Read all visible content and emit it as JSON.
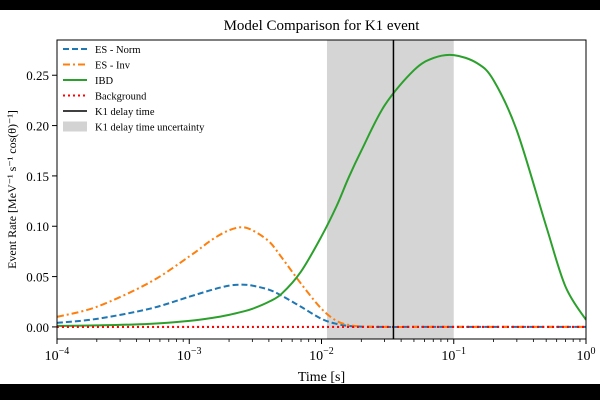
{
  "chart_data": {
    "type": "line",
    "title": "Model Comparison for K1 event",
    "xlabel": "Time [s]",
    "ylabel": "Event Rate [MeV⁻¹ s⁻¹ cos(θ)⁻¹]",
    "xscale": "log",
    "xlim": [
      0.0001,
      1
    ],
    "ylim": [
      -0.012,
      0.285
    ],
    "x_ticks": [
      {
        "value": 0.0001,
        "base": "10",
        "exp": "−4"
      },
      {
        "value": 0.001,
        "base": "10",
        "exp": "−3"
      },
      {
        "value": 0.01,
        "base": "10",
        "exp": "−2"
      },
      {
        "value": 0.1,
        "base": "10",
        "exp": "−1"
      },
      {
        "value": 1,
        "base": "10",
        "exp": "0"
      }
    ],
    "y_ticks": [
      {
        "value": 0.0,
        "label": "0.00"
      },
      {
        "value": 0.05,
        "label": "0.05"
      },
      {
        "value": 0.1,
        "label": "0.10"
      },
      {
        "value": 0.15,
        "label": "0.15"
      },
      {
        "value": 0.2,
        "label": "0.20"
      },
      {
        "value": 0.25,
        "label": "0.25"
      }
    ],
    "grid": false,
    "legend_position": "top-left",
    "x": [
      0.0001,
      0.0002,
      0.0005,
      0.001,
      0.0015,
      0.002,
      0.0025,
      0.003,
      0.004,
      0.005,
      0.007,
      0.01,
      0.013,
      0.016,
      0.02,
      0.03,
      0.05,
      0.07,
      0.1,
      0.15,
      0.2,
      0.3,
      0.5,
      0.7,
      1.0
    ],
    "series": [
      {
        "name": "ES - Norm",
        "color": "#1f77b4",
        "dash": "dashed",
        "values": [
          0.004,
          0.008,
          0.018,
          0.03,
          0.037,
          0.041,
          0.042,
          0.041,
          0.037,
          0.031,
          0.02,
          0.008,
          0.003,
          0.001,
          0.0003,
          0,
          0,
          0,
          0,
          0,
          0,
          0,
          0,
          0,
          0
        ]
      },
      {
        "name": "ES - Inv",
        "color": "#ff7f0e",
        "dash": "dashdot",
        "values": [
          0.01,
          0.02,
          0.044,
          0.07,
          0.087,
          0.096,
          0.099,
          0.096,
          0.085,
          0.069,
          0.043,
          0.018,
          0.006,
          0.002,
          0.0005,
          0,
          0,
          0,
          0,
          0,
          0,
          0,
          0,
          0,
          0
        ]
      },
      {
        "name": "IBD",
        "color": "#2ca02c",
        "dash": "solid",
        "values": [
          0.001,
          0.0015,
          0.003,
          0.006,
          0.009,
          0.012,
          0.015,
          0.018,
          0.025,
          0.033,
          0.055,
          0.09,
          0.12,
          0.148,
          0.175,
          0.22,
          0.255,
          0.267,
          0.27,
          0.262,
          0.245,
          0.195,
          0.1,
          0.04,
          0.007
        ]
      },
      {
        "name": "Background",
        "color": "#ff0000",
        "dash": "dotted",
        "values": [
          0,
          0,
          0,
          0,
          0,
          0,
          0,
          0,
          0,
          0,
          0,
          0,
          0,
          0,
          0,
          0,
          0,
          0,
          0,
          0,
          0,
          0,
          0,
          0,
          0
        ]
      }
    ],
    "vline": {
      "name": "K1 delay time",
      "x": 0.035,
      "color": "#000000"
    },
    "band": {
      "name": "K1 delay time uncertainty",
      "x_range": [
        0.011,
        0.1
      ],
      "color": "#d3d3d3"
    }
  }
}
